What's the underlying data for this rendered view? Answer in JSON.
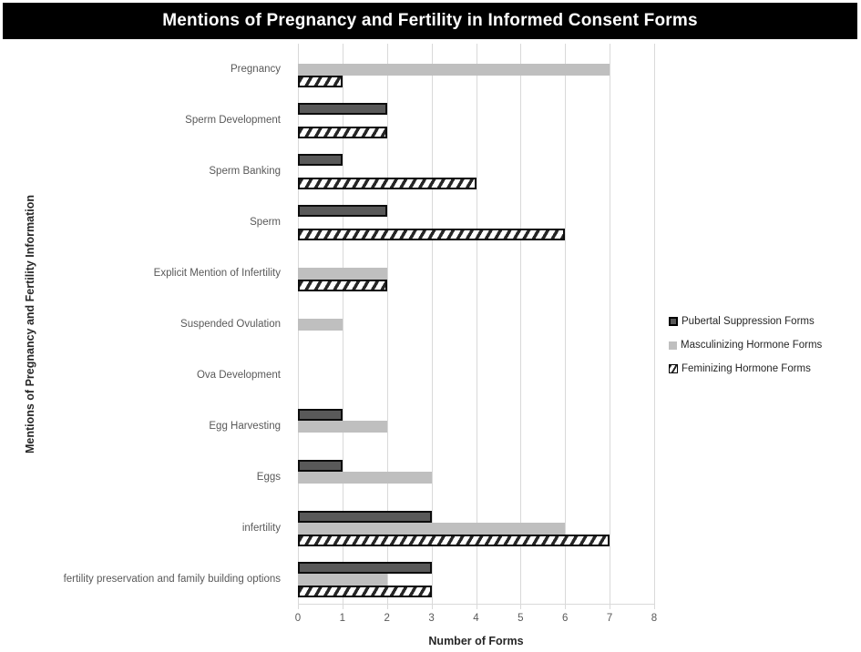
{
  "title": "Mentions of Pregnancy and Fertility in Informed Consent Forms",
  "chart_data": {
    "type": "bar",
    "orientation": "horizontal",
    "title": "Mentions of Pregnancy and Fertility in Informed Consent Forms",
    "xlabel": "Number of Forms",
    "ylabel": "Mentions of Pregnancy and Fertility Information",
    "xlim": [
      0,
      8
    ],
    "xticks": [
      0,
      1,
      2,
      3,
      4,
      5,
      6,
      7,
      8
    ],
    "grid": true,
    "legend_position": "right",
    "categories": [
      "Pregnancy",
      "Sperm Development",
      "Sperm Banking",
      "Sperm",
      "Explicit Mention of Infertility",
      "Suspended Ovulation",
      "Ova Development",
      "Egg Harvesting",
      "Eggs",
      "infertility",
      "fertility preservation and family building options"
    ],
    "series": [
      {
        "name": "Pubertal Suppression Forms",
        "style": "dark-solid",
        "values": [
          0,
          2,
          1,
          2,
          0,
          0,
          0,
          1,
          1,
          3,
          3
        ]
      },
      {
        "name": "Masculinizing Hormone Forms",
        "style": "light-solid",
        "values": [
          7,
          0,
          0,
          0,
          2,
          1,
          0,
          2,
          3,
          6,
          2
        ]
      },
      {
        "name": "Feminizing Hormone Forms",
        "style": "hatch",
        "values": [
          1,
          2,
          4,
          6,
          2,
          0,
          0,
          0,
          0,
          7,
          3
        ]
      }
    ]
  },
  "colors": {
    "title_background": "#000000",
    "title_text": "#ffffff",
    "dark_series_fill": "#595959",
    "light_series_fill": "#bfbfbf",
    "hatch_stripe": "#262626",
    "bar_border": "#0d0d0d",
    "gridline": "#d9d9d9",
    "axis_text": "#595959",
    "axis_title_text": "#262626"
  }
}
